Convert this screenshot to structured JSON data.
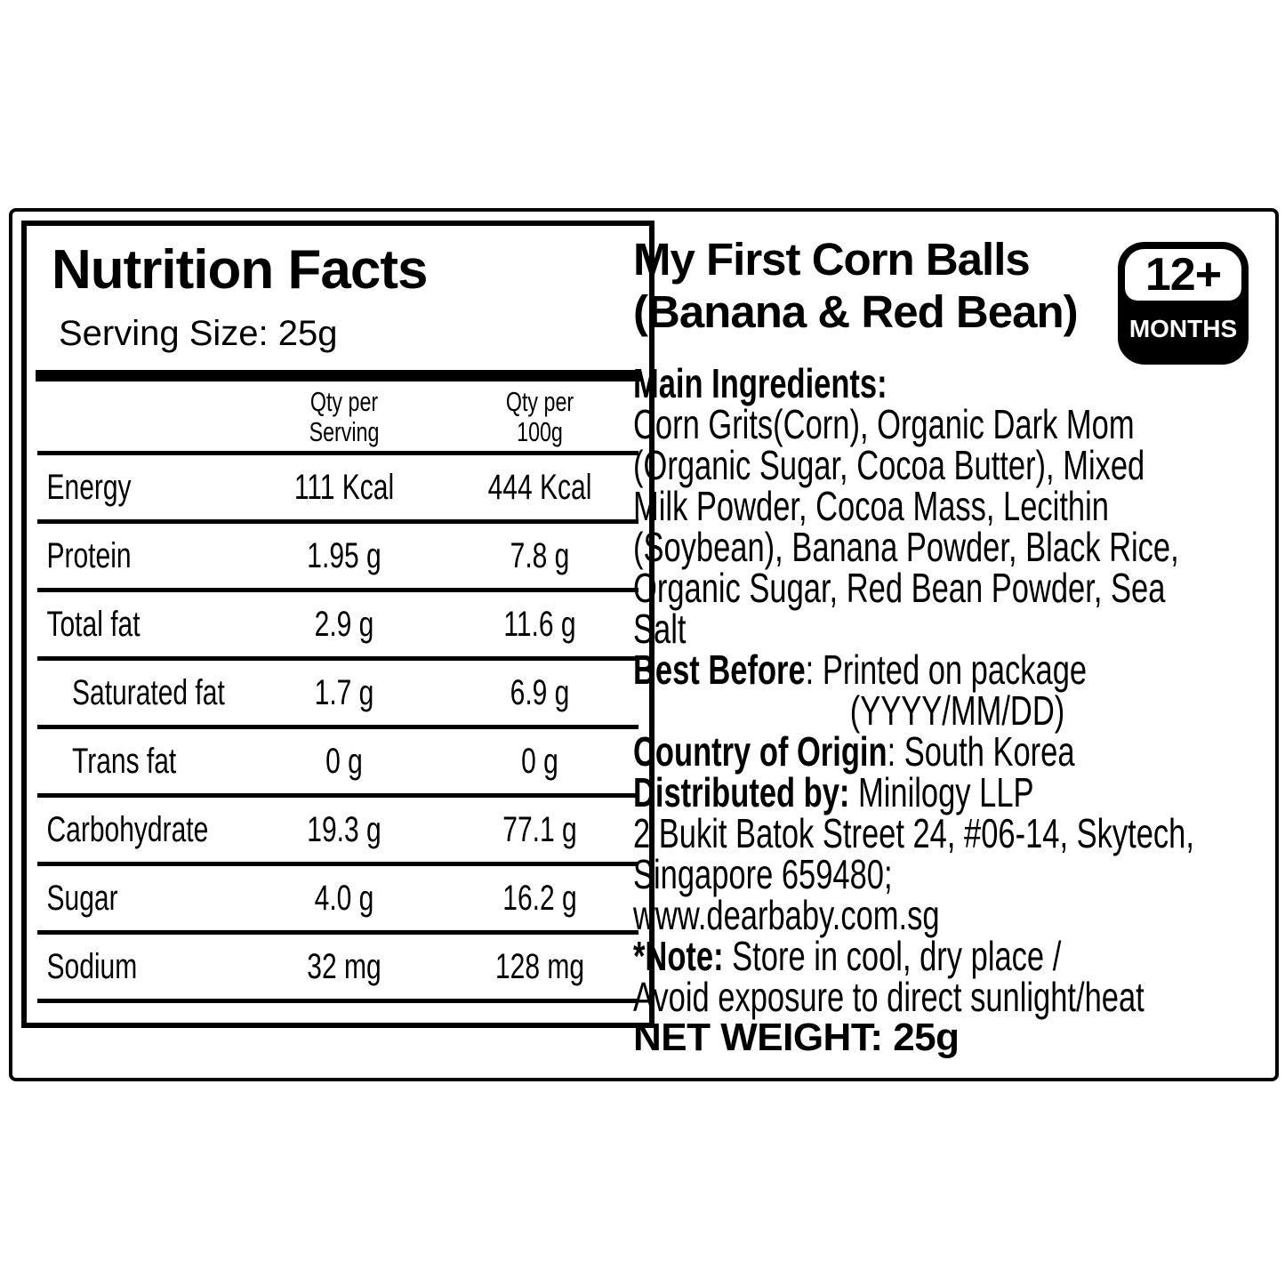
{
  "colors": {
    "ink": "#000000",
    "paper": "#ffffff"
  },
  "nutrition_panel": {
    "title": "Nutrition Facts",
    "serving_size": "Serving Size: 25g",
    "columns": [
      {
        "line1": "Qty per",
        "line2": "Serving"
      },
      {
        "line1": "Qty per",
        "line2": "100g"
      }
    ],
    "rows": [
      {
        "label": "Energy",
        "per_serving": "111 Kcal",
        "per_100g": "444 Kcal",
        "indent": false
      },
      {
        "label": "Protein",
        "per_serving": "1.95 g",
        "per_100g": "7.8 g",
        "indent": false
      },
      {
        "label": "Total fat",
        "per_serving": "2.9 g",
        "per_100g": "11.6 g",
        "indent": false
      },
      {
        "label": "Saturated fat",
        "per_serving": "1.7 g",
        "per_100g": "6.9 g",
        "indent": true
      },
      {
        "label": "Trans fat",
        "per_serving": "0 g",
        "per_100g": "0 g",
        "indent": true
      },
      {
        "label": "Carbohydrate",
        "per_serving": "19.3 g",
        "per_100g": "77.1 g",
        "indent": false
      },
      {
        "label": "Sugar",
        "per_serving": "4.0 g",
        "per_100g": "16.2 g",
        "indent": false
      },
      {
        "label": "Sodium",
        "per_serving": "32 mg",
        "per_100g": "128 mg",
        "indent": false
      }
    ]
  },
  "product_panel": {
    "title_line1": "My First Corn Balls",
    "title_line2": "(Banana & Red Bean)",
    "age_badge": {
      "age": "12+",
      "unit": "MONTHS"
    },
    "lines": [
      {
        "parts": [
          {
            "t": "Main Ingredients:",
            "b": true
          }
        ]
      },
      {
        "parts": [
          {
            "t": "Corn Grits(Corn), Organic Dark Mom",
            "b": false
          }
        ]
      },
      {
        "parts": [
          {
            "t": "(Organic Sugar, Cocoa Butter), Mixed",
            "b": false
          }
        ]
      },
      {
        "parts": [
          {
            "t": "Milk Powder, Cocoa Mass, Lecithin",
            "b": false
          }
        ]
      },
      {
        "parts": [
          {
            "t": "(Soybean), Banana Powder, Black Rice,",
            "b": false
          }
        ]
      },
      {
        "parts": [
          {
            "t": "Organic Sugar, Red Bean Powder, Sea",
            "b": false
          }
        ]
      },
      {
        "parts": [
          {
            "t": "Salt",
            "b": false
          }
        ]
      },
      {
        "parts": [
          {
            "t": "Best Before",
            "b": true
          },
          {
            "t": ": Printed on package",
            "b": false
          }
        ]
      },
      {
        "parts": [
          {
            "t": "(YYYY/MM/DD)",
            "b": false
          }
        ],
        "indent": 325
      },
      {
        "parts": [
          {
            "t": "Country of Origin",
            "b": true
          },
          {
            "t": ": South Korea",
            "b": false
          }
        ]
      },
      {
        "parts": [
          {
            "t": "Distributed by:",
            "b": true
          },
          {
            "t": " Minilogy LLP",
            "b": false
          }
        ]
      },
      {
        "parts": [
          {
            "t": "2 Bukit Batok Street 24, #06-14, Skytech,",
            "b": false
          }
        ]
      },
      {
        "parts": [
          {
            "t": "Singapore 659480;",
            "b": false
          }
        ]
      },
      {
        "parts": [
          {
            "t": "www.dearbaby.com.sg",
            "b": false
          }
        ]
      },
      {
        "parts": [
          {
            "t": "*Note:",
            "b": true
          },
          {
            "t": " Store in cool, dry place /",
            "b": false
          }
        ]
      },
      {
        "parts": [
          {
            "t": "Avoid exposure to direct sunlight/heat",
            "b": false
          }
        ]
      },
      {
        "parts": [
          {
            "t": "NET WEIGHT: 25g",
            "b": true
          }
        ],
        "big": true
      }
    ]
  }
}
